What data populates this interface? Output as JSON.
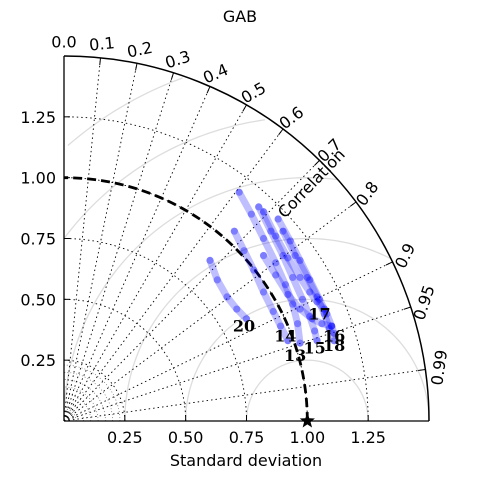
{
  "chart_data": {
    "type": "scatter",
    "subtype": "taylor-diagram",
    "title": "GAB",
    "xlabel": "Standard deviation",
    "corr_label": "Correlation",
    "std_range": [
      0,
      1.5
    ],
    "std_ticks": [
      0.25,
      0.5,
      0.75,
      1.0,
      1.25
    ],
    "std_tick_labels": [
      "0.25",
      "0.50",
      "0.75",
      "1.00",
      "1.25"
    ],
    "corr_ticks": [
      0.0,
      0.1,
      0.2,
      0.3,
      0.4,
      0.5,
      0.6,
      0.7,
      0.8,
      0.9,
      0.95,
      0.99
    ],
    "corr_tick_labels": [
      "0.0",
      "0.1",
      "0.2",
      "0.3",
      "0.4",
      "0.5",
      "0.6",
      "0.7",
      "0.8",
      "0.9",
      "0.95",
      "0.99"
    ],
    "reference": {
      "std": 1.0,
      "corr": 1.0,
      "marker": "star"
    },
    "rmsd_contours": [
      0.25,
      0.5,
      0.75,
      1.0,
      1.25,
      1.5
    ],
    "grid": true,
    "track_color": "#0000ff",
    "labels": [
      {
        "text": "20",
        "x": 0.74,
        "y": 0.39
      },
      {
        "text": "14",
        "x": 0.91,
        "y": 0.35
      },
      {
        "text": "13",
        "x": 0.95,
        "y": 0.27
      },
      {
        "text": "15",
        "x": 1.03,
        "y": 0.3
      },
      {
        "text": "17",
        "x": 1.05,
        "y": 0.44
      },
      {
        "text": "16",
        "x": 1.11,
        "y": 0.35
      },
      {
        "text": "18",
        "x": 1.11,
        "y": 0.31
      }
    ],
    "series": [
      {
        "points": [
          [
            0.6,
            0.66
          ],
          [
            0.63,
            0.58
          ],
          [
            0.67,
            0.51
          ],
          [
            0.71,
            0.46
          ],
          [
            0.75,
            0.42
          ]
        ]
      },
      {
        "points": [
          [
            0.7,
            0.78
          ],
          [
            0.74,
            0.7
          ],
          [
            0.78,
            0.62
          ],
          [
            0.82,
            0.53
          ],
          [
            0.86,
            0.45
          ],
          [
            0.89,
            0.39
          ],
          [
            0.92,
            0.33
          ]
        ]
      },
      {
        "points": [
          [
            0.72,
            0.94
          ],
          [
            0.77,
            0.85
          ],
          [
            0.82,
            0.75
          ],
          [
            0.87,
            0.65
          ],
          [
            0.91,
            0.56
          ],
          [
            0.94,
            0.48
          ],
          [
            0.96,
            0.4
          ],
          [
            0.97,
            0.32
          ]
        ]
      },
      {
        "points": [
          [
            0.8,
            0.88
          ],
          [
            0.85,
            0.78
          ],
          [
            0.9,
            0.68
          ],
          [
            0.94,
            0.59
          ],
          [
            0.98,
            0.5
          ],
          [
            1.01,
            0.43
          ],
          [
            1.03,
            0.37
          ],
          [
            1.04,
            0.33
          ]
        ]
      },
      {
        "points": [
          [
            0.82,
            0.86
          ],
          [
            0.87,
            0.76
          ],
          [
            0.92,
            0.67
          ],
          [
            0.97,
            0.59
          ],
          [
            1.01,
            0.53
          ],
          [
            1.04,
            0.49
          ],
          [
            1.07,
            0.46
          ]
        ]
      },
      {
        "points": [
          [
            0.88,
            0.83
          ],
          [
            0.93,
            0.74
          ],
          [
            0.97,
            0.66
          ],
          [
            1.01,
            0.58
          ],
          [
            1.05,
            0.5
          ],
          [
            1.08,
            0.44
          ],
          [
            1.1,
            0.39
          ],
          [
            1.11,
            0.36
          ]
        ]
      },
      {
        "points": [
          [
            0.9,
            0.78
          ],
          [
            0.95,
            0.68
          ],
          [
            1.0,
            0.59
          ],
          [
            1.04,
            0.51
          ],
          [
            1.07,
            0.44
          ],
          [
            1.09,
            0.38
          ],
          [
            1.11,
            0.33
          ]
        ]
      },
      {
        "points": [
          [
            0.82,
            0.68
          ],
          [
            0.87,
            0.6
          ],
          [
            0.92,
            0.52
          ],
          [
            0.97,
            0.46
          ],
          [
            1.02,
            0.42
          ],
          [
            1.06,
            0.4
          ],
          [
            1.1,
            0.39
          ]
        ]
      }
    ]
  }
}
